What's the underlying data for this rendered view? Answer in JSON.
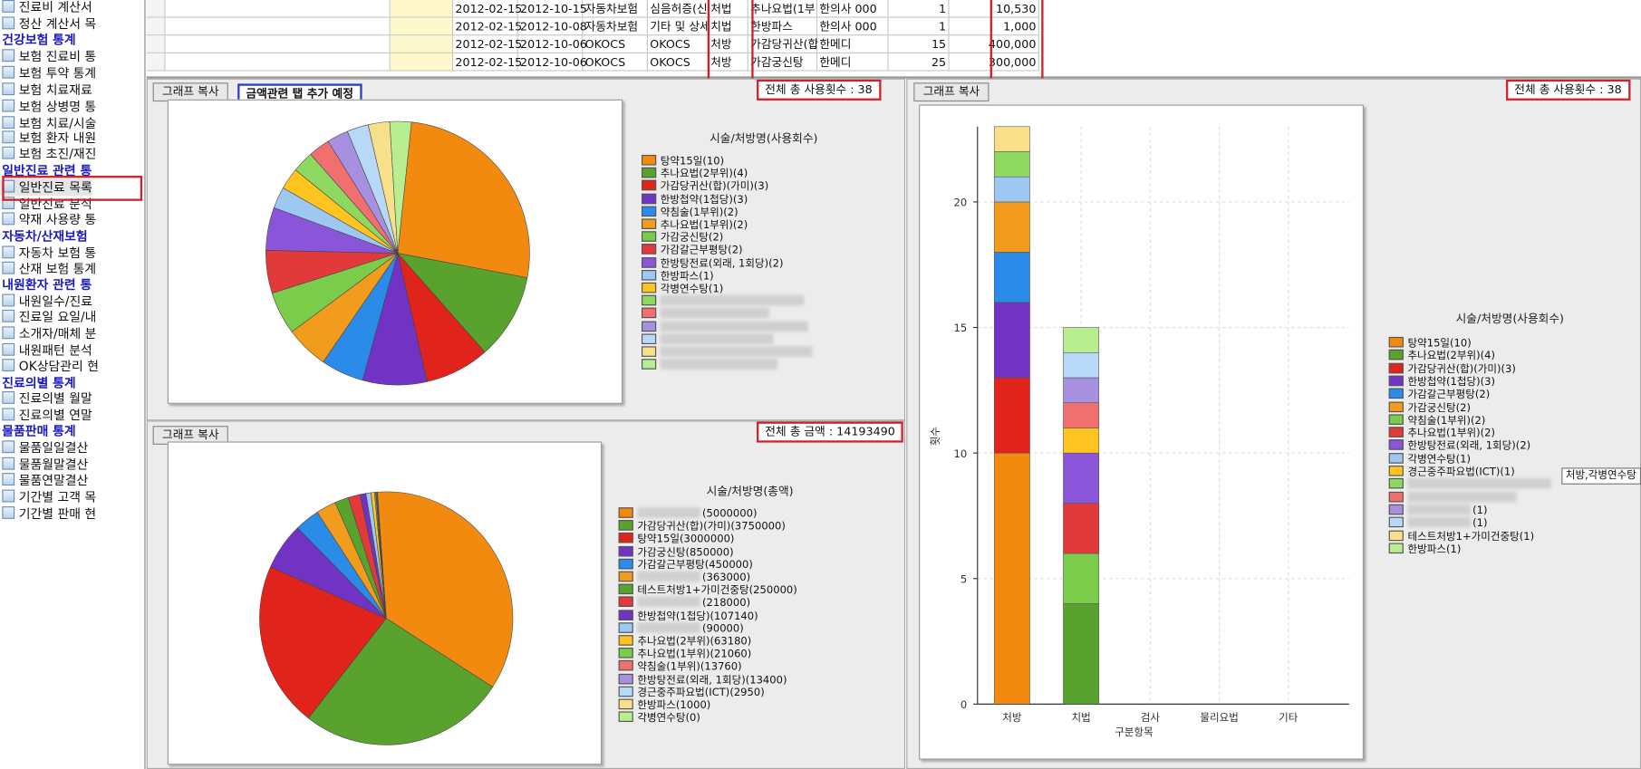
{
  "sidebar": {
    "items": [
      {
        "kind": "item",
        "label": "진료비 계산서"
      },
      {
        "kind": "item",
        "label": "정산 계산서 목"
      },
      {
        "kind": "sec",
        "label": "건강보험 통계"
      },
      {
        "kind": "item",
        "label": "보험 진료비 통"
      },
      {
        "kind": "item",
        "label": "보험 투약 통계"
      },
      {
        "kind": "item",
        "label": "보험 치료재료"
      },
      {
        "kind": "item",
        "label": "보험 상병명 통"
      },
      {
        "kind": "item",
        "label": "보험 치료/시술"
      },
      {
        "kind": "item",
        "label": "보험 환자 내원"
      },
      {
        "kind": "item",
        "label": "보험 초진/재진"
      },
      {
        "kind": "sec",
        "label": "일반진료 관련 통"
      },
      {
        "kind": "item",
        "label": "일반진료 목록"
      },
      {
        "kind": "item",
        "label": "일반진료 분석"
      },
      {
        "kind": "item",
        "label": "약재 사용량 통"
      },
      {
        "kind": "sec",
        "label": "자동차/산재보험"
      },
      {
        "kind": "item",
        "label": "자동차 보험 통"
      },
      {
        "kind": "item",
        "label": "산재 보험 통계"
      },
      {
        "kind": "sec",
        "label": "내원환자 관련 통"
      },
      {
        "kind": "item",
        "label": "내원일수/진료"
      },
      {
        "kind": "item",
        "label": "진료일 요일/내"
      },
      {
        "kind": "item",
        "label": "소개자/매체 분"
      },
      {
        "kind": "item",
        "label": "내원패턴 분석"
      },
      {
        "kind": "item",
        "label": "OK상담관리 현"
      },
      {
        "kind": "sec",
        "label": "진료의별 통계"
      },
      {
        "kind": "item",
        "label": "진료의별 월말"
      },
      {
        "kind": "item",
        "label": "진료의별 연말"
      },
      {
        "kind": "sec",
        "label": "물품판매 통계"
      },
      {
        "kind": "item",
        "label": "물품일일결산"
      },
      {
        "kind": "item",
        "label": "물품월말결산"
      },
      {
        "kind": "item",
        "label": "물품연말결산"
      },
      {
        "kind": "item",
        "label": "기간별 고객 목"
      },
      {
        "kind": "item",
        "label": "기간별 판매 현"
      }
    ],
    "highlighted": "일반진료 목록"
  },
  "table": {
    "rows": [
      [
        "2012-02-15",
        "2012-10-15",
        "자동차보험",
        "심음허증(신",
        "처법",
        "추나요법(1부",
        "한의사 000",
        "1",
        "10,530"
      ],
      [
        "2012-02-15",
        "2012-10-08",
        "자동차보험",
        "기타 및 상세",
        "치법",
        "한방파스",
        "한의사 000",
        "1",
        "1,000"
      ],
      [
        "2012-02-15",
        "2012-10-06",
        "OKOCS",
        "OKOCS",
        "처방",
        "가감당귀산(합",
        "한메디",
        "15",
        "400,000"
      ],
      [
        "2012-02-15",
        "2012-10-06",
        "OKOCS",
        "OKOCS",
        "처방",
        "가감궁신탕",
        "한메디",
        "25",
        "300,000"
      ]
    ]
  },
  "panel_count": {
    "copy_label": "그래프 복사",
    "blue_note": "금액관련 탭 추가 예정",
    "total_label": "전체 총 사용횟수 : 38",
    "legend_title": "시술/처방명(사용회수)",
    "legend": [
      {
        "label": "탕약15일(10)",
        "color": "#f28a10"
      },
      {
        "label": "추나요법(2부위)(4)",
        "color": "#5aa22e"
      },
      {
        "label": "가감당귀산(합)(가미)(3)",
        "color": "#e0241c"
      },
      {
        "label": "한방첩약(1첩당)(3)",
        "color": "#7133c4"
      },
      {
        "label": "약침술(1부위)(2)",
        "color": "#2a8ce8"
      },
      {
        "label": "추나요법(1부위)(2)",
        "color": "#f29c1e"
      },
      {
        "label": "가감궁신탕(2)",
        "color": "#7ccc4c"
      },
      {
        "label": "가감갈근부평탕(2)",
        "color": "#e23a3a"
      },
      {
        "label": "한방탕전료(외래, 1회당)(2)",
        "color": "#8a55d8"
      },
      {
        "label": "한방파스(1)",
        "color": "#9cc8f2"
      },
      {
        "label": "각병연수탕(1)",
        "color": "#ffc420"
      },
      {
        "label": "",
        "color": "#8fd860"
      },
      {
        "label": "",
        "color": "#f07070"
      },
      {
        "label": "",
        "color": "#a890e0"
      },
      {
        "label": "",
        "color": "#b8d8f8"
      },
      {
        "label": "",
        "color": "#f8e08a"
      },
      {
        "label": "",
        "color": "#b8ee90"
      }
    ]
  },
  "panel_amount": {
    "copy_label": "그래프 복사",
    "total_label": "전체 총 금액 : 14193490",
    "legend_title": "시술/처방명(총액)",
    "legend": [
      {
        "label": "(5000000)",
        "color": "#f28a10"
      },
      {
        "label": "가감당귀산(합)(가미)(3750000)",
        "color": "#5aa22e"
      },
      {
        "label": "탕약15일(3000000)",
        "color": "#e0241c"
      },
      {
        "label": "가감궁신탕(850000)",
        "color": "#7133c4"
      },
      {
        "label": "가감갈근부평탕(450000)",
        "color": "#2a8ce8"
      },
      {
        "label": "(363000)",
        "color": "#f29c1e"
      },
      {
        "label": "테스트처방1+가미건중탕(250000)",
        "color": "#5aa22e"
      },
      {
        "label": "(218000)",
        "color": "#e23a3a"
      },
      {
        "label": "한방첩약(1첩당)(107140)",
        "color": "#7133c4"
      },
      {
        "label": "(90000)",
        "color": "#9cc8f2"
      },
      {
        "label": "추나요법(2부위)(63180)",
        "color": "#ffc420"
      },
      {
        "label": "추나요법(1부위)(21060)",
        "color": "#7ccc4c"
      },
      {
        "label": "약침술(1부위)(13760)",
        "color": "#f07070"
      },
      {
        "label": "한방탕전료(외래, 1회당)(13400)",
        "color": "#a890e0"
      },
      {
        "label": "경근중주파요법(ICT)(2950)",
        "color": "#b8d8f8"
      },
      {
        "label": "한방파스(1000)",
        "color": "#f8e08a"
      },
      {
        "label": "각병연수탕(0)",
        "color": "#b8ee90"
      }
    ]
  },
  "panel_bar": {
    "copy_label": "그래프 복사",
    "total_label": "전체 총 사용횟수 : 38",
    "legend_title": "시술/처방명(사용회수)",
    "tooltip": "처방,각병연수탕",
    "legend": [
      {
        "label": "탕약15일(10)",
        "color": "#f28a10"
      },
      {
        "label": "추나요법(2부위)(4)",
        "color": "#5aa22e"
      },
      {
        "label": "가감당귀산(합)(가미)(3)",
        "color": "#e0241c"
      },
      {
        "label": "한방첩약(1첩당)(3)",
        "color": "#7133c4"
      },
      {
        "label": "가감갈근부평탕(2)",
        "color": "#2a8ce8"
      },
      {
        "label": "가감궁신탕(2)",
        "color": "#f29c1e"
      },
      {
        "label": "약침술(1부위)(2)",
        "color": "#7ccc4c"
      },
      {
        "label": "추나요법(1부위)(2)",
        "color": "#e23a3a"
      },
      {
        "label": "한방탕전료(외래, 1회당)(2)",
        "color": "#8a55d8"
      },
      {
        "label": "각병연수탕(1)",
        "color": "#9cc8f2"
      },
      {
        "label": "경근중주파요법(ICT)(1)",
        "color": "#ffc420"
      },
      {
        "label": "",
        "color": "#8fd860"
      },
      {
        "label": "",
        "color": "#f07070"
      },
      {
        "label": "(1)",
        "color": "#a890e0"
      },
      {
        "label": "(1)",
        "color": "#b8d8f8"
      },
      {
        "label": "테스트처방1+가미건중탕(1)",
        "color": "#f8e08a"
      },
      {
        "label": "한방파스(1)",
        "color": "#b8ee90"
      }
    ]
  },
  "chart_data": [
    {
      "type": "pie",
      "title": "시술/처방명(사용회수)",
      "values": [
        10,
        4,
        3,
        3,
        2,
        2,
        2,
        2,
        2,
        1,
        1,
        1,
        1,
        1,
        1,
        1,
        1
      ],
      "colors": [
        "#f28a10",
        "#5aa22e",
        "#e0241c",
        "#7133c4",
        "#2a8ce8",
        "#f29c1e",
        "#7ccc4c",
        "#e23a3a",
        "#8a55d8",
        "#9cc8f2",
        "#ffc420",
        "#8fd860",
        "#f07070",
        "#a890e0",
        "#b8d8f8",
        "#f8e08a",
        "#b8ee90"
      ]
    },
    {
      "type": "pie",
      "title": "시술/처방명(총액)",
      "values": [
        5000000,
        3750000,
        3000000,
        850000,
        450000,
        363000,
        250000,
        218000,
        107140,
        90000,
        63180,
        21060,
        13760,
        13400,
        2950,
        1000,
        0
      ],
      "colors": [
        "#f28a10",
        "#5aa22e",
        "#e0241c",
        "#7133c4",
        "#2a8ce8",
        "#f29c1e",
        "#5aa22e",
        "#e23a3a",
        "#7133c4",
        "#9cc8f2",
        "#ffc420",
        "#7ccc4c",
        "#f07070",
        "#a890e0",
        "#b8d8f8",
        "#f8e08a",
        "#b8ee90"
      ]
    },
    {
      "type": "bar",
      "stacked": true,
      "categories": [
        "처방",
        "치법",
        "검사",
        "물리요법",
        "기타"
      ],
      "xlabel": "구분항목",
      "ylabel": "횟수",
      "ylim": [
        0,
        23
      ],
      "yticks": [
        0,
        5,
        10,
        15,
        20
      ],
      "stacks": [
        [
          {
            "v": 10,
            "c": "#f28a10"
          },
          {
            "v": 3,
            "c": "#e0241c"
          },
          {
            "v": 3,
            "c": "#7133c4"
          },
          {
            "v": 2,
            "c": "#2a8ce8"
          },
          {
            "v": 2,
            "c": "#f29c1e"
          },
          {
            "v": 1,
            "c": "#9cc8f2"
          },
          {
            "v": 1,
            "c": "#8fd860"
          },
          {
            "v": 1,
            "c": "#f8e08a"
          }
        ],
        [
          {
            "v": 4,
            "c": "#5aa22e"
          },
          {
            "v": 2,
            "c": "#7ccc4c"
          },
          {
            "v": 2,
            "c": "#e23a3a"
          },
          {
            "v": 2,
            "c": "#8a55d8"
          },
          {
            "v": 1,
            "c": "#ffc420"
          },
          {
            "v": 1,
            "c": "#f07070"
          },
          {
            "v": 1,
            "c": "#a890e0"
          },
          {
            "v": 1,
            "c": "#b8d8f8"
          },
          {
            "v": 1,
            "c": "#b8ee90"
          }
        ],
        [],
        [],
        []
      ]
    }
  ]
}
